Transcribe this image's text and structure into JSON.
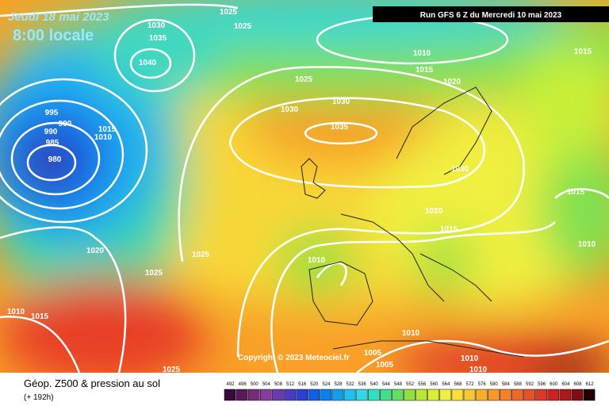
{
  "header": {
    "date": "Jeudi 18 mai 2023",
    "time": "8:00 locale",
    "run": "Run GFS 6 Z du Mercredi 10 mai 2023"
  },
  "isobar_labels": [
    "1025",
    "1030",
    "1035",
    "1025",
    "1040",
    "1010",
    "1015",
    "1015",
    "1025",
    "1020",
    "995",
    "990",
    "1030",
    "1030",
    "990",
    "1015",
    "1010",
    "985",
    "1035",
    "980",
    "1030",
    "1015",
    "1020",
    "1015",
    "1010",
    "1020",
    "1025",
    "1010",
    "1025",
    "1010",
    "1015",
    "1010",
    "1005",
    "1010",
    "1005",
    "1010",
    "1025"
  ],
  "copyright": "Copyright © 2023 Meteociel.fr",
  "footer": {
    "title": "Géop. Z500 & pression au sol",
    "subtitle": "(+ 192h)"
  },
  "legend": {
    "values": [
      492,
      496,
      500,
      504,
      508,
      512,
      516,
      520,
      524,
      528,
      532,
      536,
      540,
      544,
      548,
      552,
      556,
      560,
      564,
      568,
      572,
      576,
      580,
      584,
      588,
      592,
      596,
      600,
      604,
      608,
      612
    ],
    "colors": [
      "#3a0a3a",
      "#5a1a5a",
      "#7a2a7a",
      "#8a3a9a",
      "#6a3ab0",
      "#4a3ac8",
      "#2a40d8",
      "#1060e8",
      "#0a80f0",
      "#10a0f0",
      "#20c0f0",
      "#30d8e8",
      "#30e0c0",
      "#40e090",
      "#60e060",
      "#90e040",
      "#b8e830",
      "#d8f030",
      "#f0f040",
      "#f8e038",
      "#f8c830",
      "#f8b028",
      "#f89828",
      "#f88028",
      "#f06828",
      "#e85028",
      "#e03828",
      "#d02020",
      "#b01818",
      "#801010",
      "#200000"
    ]
  }
}
